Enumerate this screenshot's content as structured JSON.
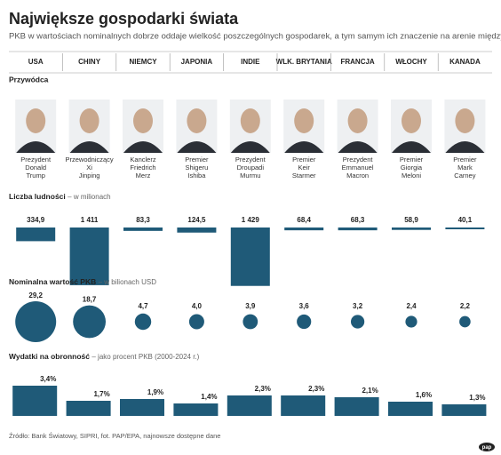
{
  "header": {
    "title": "Największe gospodarki świata",
    "subtitle": "PKB w wartościach nominalnych dobrze oddaje wielkość poszczególnych gospodarek, a tym samym ich znaczenie na arenie międzynarodowej."
  },
  "countries": [
    "USA",
    "CHINY",
    "NIEMCY",
    "JAPONIA",
    "INDIE",
    "WLK. BRYTANIA",
    "FRANCJA",
    "WŁOCHY",
    "KANADA"
  ],
  "leaders": {
    "title": "Przywódca",
    "items": [
      {
        "role": "Prezydent",
        "first": "Donald",
        "last": "Trump"
      },
      {
        "role": "Przewodniczący",
        "first": "Xi",
        "last": "Jinping"
      },
      {
        "role": "Kanclerz",
        "first": "Friedrich",
        "last": "Merz"
      },
      {
        "role": "Premier",
        "first": "Shigeru",
        "last": "Ishiba"
      },
      {
        "role": "Prezydent",
        "first": "Droupadi",
        "last": "Murmu"
      },
      {
        "role": "Premier",
        "first": "Keir",
        "last": "Starmer"
      },
      {
        "role": "Prezydent",
        "first": "Emmanuel",
        "last": "Macron"
      },
      {
        "role": "Premier",
        "first": "Giorgia",
        "last": "Meloni"
      },
      {
        "role": "Premier",
        "first": "Mark",
        "last": "Carney"
      }
    ]
  },
  "chart_data": [
    {
      "type": "bar",
      "title": "Liczba ludności",
      "unit": "– w milionach",
      "color": "#1f5a78",
      "values": [
        334.9,
        1411,
        83.3,
        124.5,
        1429,
        68.4,
        68.3,
        58.9,
        40.1
      ],
      "value_labels": [
        "334,9",
        "1 411",
        "83,3",
        "124,5",
        "1 429",
        "68,4",
        "68,3",
        "58,9",
        "40,1"
      ]
    },
    {
      "type": "bubble",
      "title": "Nominalna wartość PKB",
      "unit": "– w bilionach USD",
      "color": "#1f5a78",
      "values": [
        29.2,
        18.7,
        4.7,
        4.0,
        3.9,
        3.6,
        3.2,
        2.4,
        2.2
      ],
      "value_labels": [
        "29,2",
        "18,7",
        "4,7",
        "4,0",
        "3,9",
        "3,6",
        "3,2",
        "2,4",
        "2,2"
      ]
    },
    {
      "type": "column",
      "title": "Wydatki na obronność",
      "unit": "– jako procent PKB (2000-2024 r.)",
      "color": "#1f5a78",
      "values": [
        3.4,
        1.7,
        1.9,
        1.4,
        2.3,
        2.3,
        2.1,
        1.6,
        1.3
      ],
      "value_labels": [
        "3,4%",
        "1,7%",
        "1,9%",
        "1,4%",
        "2,3%",
        "2,3%",
        "2,1%",
        "1,6%",
        "1,3%"
      ]
    }
  ],
  "source": "Źródło: Bank Światowy, SIPRI, fot. PAP/EPA, najnowsze dostępne dane",
  "logo": "pap"
}
